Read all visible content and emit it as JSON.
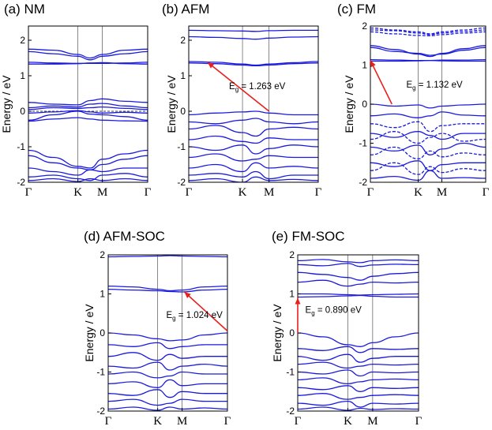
{
  "chart_data": [
    {
      "type": "line",
      "title": "(a) NM",
      "ylabel": "Energy / eV",
      "ylim": [
        -2,
        2.4
      ],
      "yticks": [
        "-2",
        "-1",
        "0",
        "1",
        "2"
      ],
      "kpoints": [
        "Γ",
        "K",
        "M",
        "Γ"
      ],
      "fermi_level": 0,
      "series": [
        {
          "values": [
            1.75,
            1.72,
            1.6,
            1.5,
            1.6,
            1.72,
            1.75
          ],
          "style": "solid"
        },
        {
          "values": [
            1.68,
            1.62,
            1.55,
            1.45,
            1.55,
            1.62,
            1.68
          ],
          "style": "solid"
        },
        {
          "values": [
            1.38,
            1.36,
            1.35,
            1.35,
            1.35,
            1.36,
            1.38
          ],
          "style": "solid"
        },
        {
          "values": [
            1.33,
            1.33,
            1.34,
            1.36,
            1.37,
            1.34,
            1.33
          ],
          "style": "solid"
        },
        {
          "values": [
            0.25,
            0.2,
            0.18,
            0.3,
            0.35,
            0.28,
            0.25
          ],
          "style": "solid"
        },
        {
          "values": [
            0.1,
            0.15,
            0.12,
            0.2,
            0.22,
            0.15,
            0.1
          ],
          "style": "solid"
        },
        {
          "values": [
            0.05,
            0.1,
            0.08,
            0.1,
            0.12,
            0.08,
            0.05
          ],
          "style": "solid"
        },
        {
          "values": [
            -0.05,
            -0.02,
            0.02,
            -0.02,
            -0.05,
            -0.03,
            -0.05
          ],
          "style": "solid"
        },
        {
          "values": [
            -0.25,
            -0.1,
            0.0,
            -0.08,
            -0.1,
            -0.15,
            -0.25
          ],
          "style": "solid"
        },
        {
          "values": [
            -0.28,
            -0.22,
            -0.18,
            -0.22,
            -0.25,
            -0.27,
            -0.28
          ],
          "style": "solid"
        },
        {
          "values": [
            -1.1,
            -1.3,
            -1.55,
            -1.6,
            -1.35,
            -1.2,
            -1.1
          ],
          "style": "solid"
        },
        {
          "values": [
            -1.25,
            -1.45,
            -1.6,
            -1.65,
            -1.5,
            -1.35,
            -1.25
          ],
          "style": "solid"
        },
        {
          "values": [
            -1.6,
            -1.7,
            -1.8,
            -1.65,
            -1.7,
            -1.6,
            -1.6
          ],
          "style": "solid"
        },
        {
          "values": [
            -1.85,
            -1.8,
            -1.9,
            -1.95,
            -1.8,
            -1.75,
            -1.85
          ],
          "style": "solid"
        },
        {
          "values": [
            -1.95,
            -1.9,
            -1.98,
            -1.9,
            -1.95,
            -1.9,
            -1.95
          ],
          "style": "solid"
        }
      ],
      "arrow": null,
      "annotation": null
    },
    {
      "type": "line",
      "title": "(b) AFM",
      "ylabel": "Energy / eV",
      "ylim": [
        -2,
        2.4
      ],
      "yticks": [
        "-2",
        "-1",
        "0",
        "1",
        "2"
      ],
      "kpoints": [
        "Γ",
        "K",
        "M",
        "Γ"
      ],
      "series": [
        {
          "values": [
            2.28,
            2.27,
            2.26,
            2.25,
            2.27,
            2.28,
            2.28
          ],
          "style": "solid"
        },
        {
          "values": [
            2.1,
            2.08,
            2.05,
            2.03,
            2.06,
            2.09,
            2.1
          ],
          "style": "solid"
        },
        {
          "values": [
            1.4,
            1.38,
            1.33,
            1.3,
            1.33,
            1.37,
            1.4
          ],
          "style": "solid"
        },
        {
          "values": [
            1.36,
            1.34,
            1.3,
            1.28,
            1.3,
            1.34,
            1.36
          ],
          "style": "solid"
        },
        {
          "values": [
            -0.1,
            -0.05,
            -0.02,
            0.0,
            -0.05,
            -0.1,
            -0.1
          ],
          "style": "solid"
        },
        {
          "values": [
            -0.3,
            -0.35,
            -0.25,
            -0.2,
            -0.3,
            -0.35,
            -0.3
          ],
          "style": "solid"
        },
        {
          "values": [
            -0.5,
            -0.4,
            -0.6,
            -0.7,
            -0.5,
            -0.45,
            -0.5
          ],
          "style": "solid"
        },
        {
          "values": [
            -0.8,
            -0.7,
            -0.85,
            -0.9,
            -0.75,
            -0.8,
            -0.8
          ],
          "style": "solid"
        },
        {
          "values": [
            -1.0,
            -1.1,
            -0.95,
            -1.2,
            -1.05,
            -0.95,
            -1.0
          ],
          "style": "solid"
        },
        {
          "values": [
            -1.3,
            -1.2,
            -1.4,
            -1.35,
            -1.25,
            -1.3,
            -1.3
          ],
          "style": "solid"
        },
        {
          "values": [
            -1.6,
            -1.5,
            -1.7,
            -1.45,
            -1.6,
            -1.55,
            -1.6
          ],
          "style": "solid"
        },
        {
          "values": [
            -1.8,
            -1.75,
            -1.85,
            -1.7,
            -1.9,
            -1.8,
            -1.8
          ],
          "style": "solid"
        },
        {
          "values": [
            -1.95,
            -1.9,
            -2.0,
            -1.85,
            -1.95,
            -1.92,
            -1.95
          ],
          "style": "solid"
        }
      ],
      "arrow": {
        "from": [
          2,
          0.0
        ],
        "to": [
          0.35,
          1.38
        ]
      },
      "annotation": {
        "prefix": "E",
        "sub": "g",
        "value": " = 1.263 eV",
        "at": [
          0.75,
          0.62
        ]
      }
    },
    {
      "type": "line",
      "title": "(c) FM",
      "ylabel": "Energy / eV",
      "ylim": [
        -2,
        2
      ],
      "yticks": [
        "-2",
        "-1",
        "0",
        "1",
        "2"
      ],
      "kpoints": [
        "Γ",
        "K",
        "M",
        "Γ"
      ],
      "series": [
        {
          "values": [
            1.95,
            1.9,
            1.85,
            1.8,
            1.85,
            1.9,
            1.95
          ],
          "style": "dashed"
        },
        {
          "values": [
            1.9,
            1.88,
            1.82,
            1.78,
            1.82,
            1.86,
            1.9
          ],
          "style": "dashed"
        },
        {
          "values": [
            1.85,
            1.8,
            1.76,
            1.75,
            1.78,
            1.82,
            1.85
          ],
          "style": "dashed"
        },
        {
          "values": [
            1.5,
            1.4,
            1.28,
            1.22,
            1.3,
            1.42,
            1.5
          ],
          "style": "solid"
        },
        {
          "values": [
            1.45,
            1.35,
            1.3,
            1.25,
            1.28,
            1.38,
            1.45
          ],
          "style": "solid"
        },
        {
          "values": [
            1.14,
            1.13,
            1.12,
            1.12,
            1.13,
            1.13,
            1.14
          ],
          "style": "solid"
        },
        {
          "values": [
            1.1,
            1.1,
            1.11,
            1.12,
            1.11,
            1.1,
            1.1
          ],
          "style": "solid"
        },
        {
          "values": [
            0.0,
            -0.05,
            -0.02,
            -0.1,
            -0.05,
            -0.02,
            0.0
          ],
          "style": "solid"
        },
        {
          "values": [
            -0.3,
            -0.25,
            -0.35,
            -0.3,
            -0.2,
            -0.28,
            -0.3
          ],
          "style": "solid"
        },
        {
          "values": [
            -0.5,
            -0.6,
            -0.45,
            -0.7,
            -0.55,
            -0.5,
            -0.5
          ],
          "style": "dashed"
        },
        {
          "values": [
            -0.75,
            -0.85,
            -0.7,
            -0.8,
            -0.9,
            -0.75,
            -0.75
          ],
          "style": "solid"
        },
        {
          "values": [
            -0.9,
            -0.7,
            -1.0,
            -0.85,
            -0.75,
            -0.95,
            -0.9
          ],
          "style": "dashed"
        },
        {
          "values": [
            -1.1,
            -1.2,
            -1.05,
            -1.3,
            -1.15,
            -1.0,
            -1.1
          ],
          "style": "solid"
        },
        {
          "values": [
            -1.3,
            -1.1,
            -1.4,
            -1.2,
            -1.35,
            -1.25,
            -1.3
          ],
          "style": "dashed"
        },
        {
          "values": [
            -1.5,
            -1.6,
            -1.45,
            -1.7,
            -1.55,
            -1.5,
            -1.5
          ],
          "style": "solid"
        },
        {
          "values": [
            -1.7,
            -1.5,
            -1.8,
            -1.6,
            -1.75,
            -1.65,
            -1.7
          ],
          "style": "dashed"
        },
        {
          "values": [
            -1.9,
            -1.85,
            -1.95,
            -1.7,
            -1.9,
            -1.88,
            -1.9
          ],
          "style": "solid"
        }
      ],
      "arrow": {
        "from": [
          0.45,
          0.0
        ],
        "to": [
          0.0,
          1.12
        ]
      },
      "annotation": {
        "prefix": "E",
        "sub": "g",
        "value": " = 1.132 eV",
        "at": [
          0.75,
          0.42
        ]
      }
    },
    {
      "type": "line",
      "title": "(d) AFM-SOC",
      "ylabel": "Energy / eV",
      "ylim": [
        -2,
        2
      ],
      "yticks": [
        "-2",
        "-1",
        "0",
        "1",
        "2"
      ],
      "kpoints": [
        "Γ",
        "K",
        "M",
        "Γ"
      ],
      "series": [
        {
          "values": [
            1.95,
            1.96,
            1.97,
            1.98,
            1.97,
            1.96,
            1.95
          ],
          "style": "solid"
        },
        {
          "values": [
            1.2,
            1.18,
            1.12,
            1.08,
            1.1,
            1.18,
            1.2
          ],
          "style": "solid"
        },
        {
          "values": [
            1.12,
            1.1,
            1.08,
            1.06,
            1.05,
            1.1,
            1.12
          ],
          "style": "solid"
        },
        {
          "values": [
            0.0,
            -0.05,
            -0.15,
            -0.2,
            -0.18,
            -0.05,
            0.0
          ],
          "style": "solid"
        },
        {
          "values": [
            -0.3,
            -0.35,
            -0.25,
            -0.4,
            -0.35,
            -0.3,
            -0.3
          ],
          "style": "solid"
        },
        {
          "values": [
            -0.6,
            -0.5,
            -0.7,
            -0.55,
            -0.65,
            -0.6,
            -0.6
          ],
          "style": "solid"
        },
        {
          "values": [
            -0.85,
            -0.9,
            -0.75,
            -0.95,
            -0.85,
            -0.8,
            -0.85
          ],
          "style": "solid"
        },
        {
          "values": [
            -1.05,
            -1.0,
            -1.15,
            -1.1,
            -1.0,
            -1.05,
            -1.05
          ],
          "style": "solid"
        },
        {
          "values": [
            -1.3,
            -1.25,
            -1.4,
            -1.2,
            -1.35,
            -1.3,
            -1.3
          ],
          "style": "solid"
        },
        {
          "values": [
            -1.55,
            -1.6,
            -1.45,
            -1.65,
            -1.5,
            -1.55,
            -1.55
          ],
          "style": "solid"
        },
        {
          "values": [
            -1.75,
            -1.7,
            -1.85,
            -1.8,
            -1.7,
            -1.75,
            -1.75
          ],
          "style": "solid"
        },
        {
          "values": [
            -1.95,
            -1.9,
            -1.98,
            -1.9,
            -1.95,
            -1.92,
            -1.95
          ],
          "style": "solid"
        }
      ],
      "arrow": {
        "from": [
          3.0,
          0.05
        ],
        "to": [
          2.05,
          1.05
        ]
      },
      "annotation": {
        "prefix": "E",
        "sub": "g",
        "value": " = 1.024 eV",
        "at": [
          1.35,
          0.38
        ]
      }
    },
    {
      "type": "line",
      "title": "(e) FM-SOC",
      "ylabel": "Energy / eV",
      "ylim": [
        -2,
        2
      ],
      "yticks": [
        "-2",
        "-1",
        "0",
        "1",
        "2"
      ],
      "kpoints": [
        "Γ",
        "K",
        "M",
        "Γ"
      ],
      "series": [
        {
          "values": [
            1.85,
            1.88,
            1.82,
            1.8,
            1.85,
            1.87,
            1.85
          ],
          "style": "solid"
        },
        {
          "values": [
            1.75,
            1.72,
            1.78,
            1.7,
            1.74,
            1.76,
            1.75
          ],
          "style": "solid"
        },
        {
          "values": [
            1.55,
            1.5,
            1.42,
            1.35,
            1.45,
            1.52,
            1.55
          ],
          "style": "solid"
        },
        {
          "values": [
            1.3,
            1.35,
            1.2,
            1.25,
            1.3,
            1.28,
            1.3
          ],
          "style": "solid"
        },
        {
          "values": [
            1.0,
            1.0,
            0.98,
            0.97,
            0.98,
            0.99,
            1.0
          ],
          "style": "solid"
        },
        {
          "values": [
            0.92,
            0.93,
            0.95,
            0.96,
            0.94,
            0.92,
            0.92
          ],
          "style": "solid"
        },
        {
          "values": [
            0.0,
            -0.1,
            -0.3,
            -0.35,
            -0.25,
            -0.1,
            0.0
          ],
          "style": "solid"
        },
        {
          "values": [
            -0.4,
            -0.45,
            -0.35,
            -0.5,
            -0.4,
            -0.42,
            -0.4
          ],
          "style": "solid"
        },
        {
          "values": [
            -0.6,
            -0.7,
            -0.55,
            -0.75,
            -0.65,
            -0.6,
            -0.6
          ],
          "style": "solid"
        },
        {
          "values": [
            -0.8,
            -0.75,
            -0.9,
            -0.85,
            -0.8,
            -0.82,
            -0.8
          ],
          "style": "solid"
        },
        {
          "values": [
            -1.0,
            -1.05,
            -0.95,
            -1.1,
            -1.0,
            -1.02,
            -1.0
          ],
          "style": "solid"
        },
        {
          "values": [
            -1.2,
            -1.15,
            -1.3,
            -1.25,
            -1.2,
            -1.18,
            -1.2
          ],
          "style": "solid"
        },
        {
          "values": [
            -1.4,
            -1.45,
            -1.35,
            -1.5,
            -1.4,
            -1.42,
            -1.4
          ],
          "style": "solid"
        },
        {
          "values": [
            -1.6,
            -1.55,
            -1.7,
            -1.65,
            -1.6,
            -1.58,
            -1.6
          ],
          "style": "solid"
        },
        {
          "values": [
            -1.8,
            -1.85,
            -1.75,
            -1.9,
            -1.8,
            -1.82,
            -1.8
          ],
          "style": "solid"
        },
        {
          "values": [
            -1.95,
            -1.9,
            -1.98,
            -1.93,
            -1.96,
            -1.94,
            -1.95
          ],
          "style": "solid"
        }
      ],
      "arrow": {
        "from": [
          0.0,
          0.0
        ],
        "to": [
          0.0,
          0.9
        ]
      },
      "annotation": {
        "prefix": "E",
        "sub": "g",
        "value": " = 0.890 eV",
        "at": [
          0.15,
          0.52
        ]
      }
    }
  ],
  "colors": {
    "band": "#1a1adf",
    "arrow": "#e8201c",
    "fermi": "#000000",
    "axis": "#000000"
  }
}
